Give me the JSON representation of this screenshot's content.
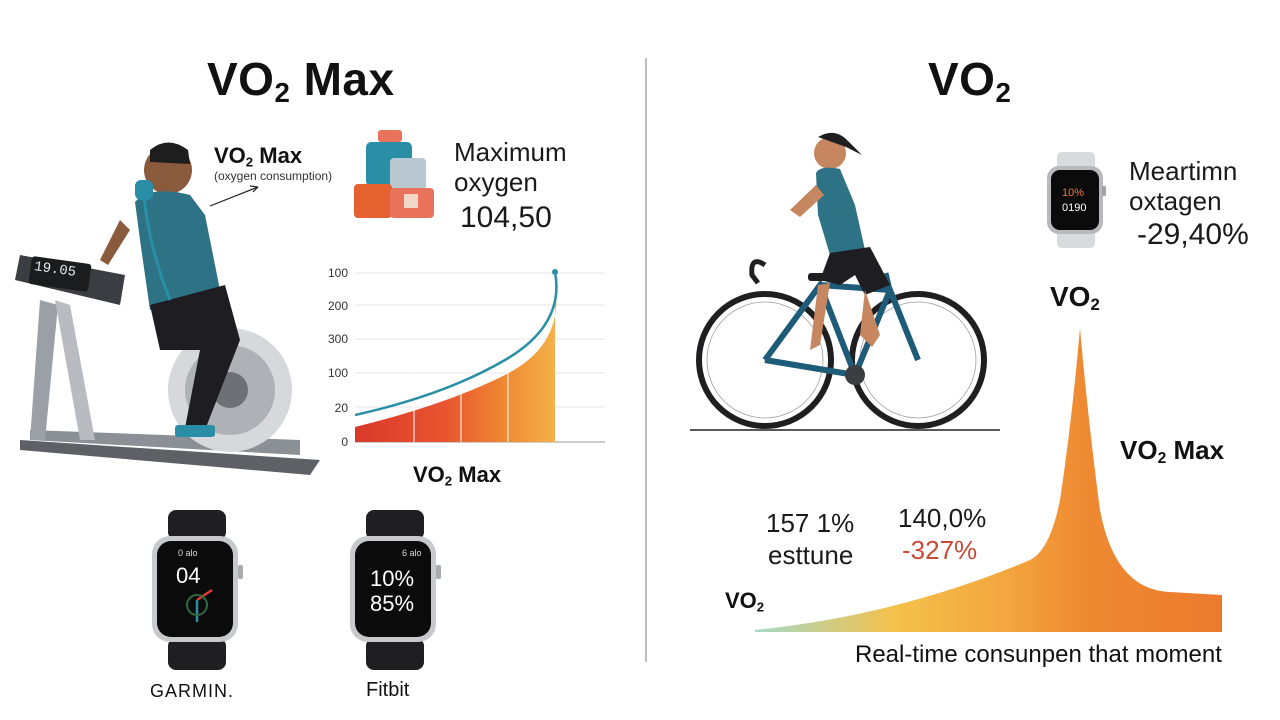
{
  "left": {
    "title_main": "VO",
    "title_sub": "2",
    "title_rest": " Max",
    "person_label": {
      "main": "VO",
      "sub": "2",
      "rest": " Max",
      "caption": "(oxygen consumption)"
    },
    "max_label": {
      "line1": "Maximum",
      "line2": "oxygen",
      "value": "104,50"
    },
    "treadmill_display": "19.05",
    "chart": {
      "tick_labels": [
        "100",
        "200",
        "300",
        "100",
        "20",
        "0"
      ],
      "xlabel": {
        "main": "VO",
        "sub": "2",
        "rest": " Max"
      }
    },
    "watches": [
      {
        "brand": "GARMIN.",
        "screen_top": "0 alo",
        "screen_main": "04"
      },
      {
        "brand": "Fitbit",
        "screen_top": "6 alo",
        "screen_line1": "10%",
        "screen_line2": "85%"
      }
    ]
  },
  "right": {
    "title_main": "VO",
    "title_sub": "2",
    "watch_screen": {
      "line1": "10%",
      "line2": "0190"
    },
    "watch_label": {
      "line1": "Meartimn",
      "line2": "oxtagen",
      "value": "-29,40%"
    },
    "peak_label": {
      "main": "VO",
      "sub": "2"
    },
    "max_label": {
      "main": "VO",
      "sub": "2",
      "rest": " Max"
    },
    "stat1": {
      "line1": "157 1%",
      "line2": "esttune"
    },
    "stat2": {
      "line1": "140,0%",
      "line2": "-327%"
    },
    "base_label": {
      "main": "VO",
      "sub": "2"
    },
    "caption": "Real-time consunpen that moment"
  },
  "colors": {
    "accent_teal": "#2a8fa6",
    "warm_red": "#d93a2b",
    "warm_orange": "#ec7a2d",
    "warm_yellow": "#f4b04a",
    "stat_red": "#c84a35"
  }
}
